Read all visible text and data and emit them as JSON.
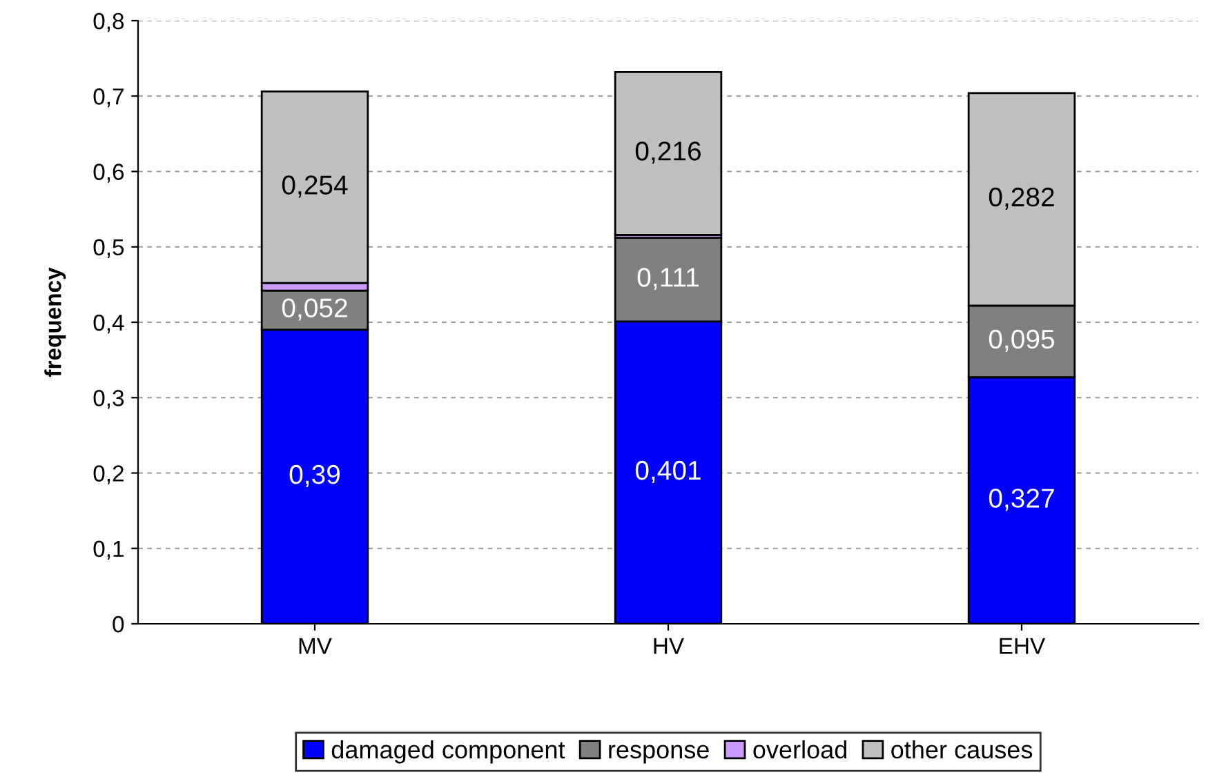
{
  "chart_data": {
    "type": "bar",
    "stacked": true,
    "ylabel": "frequency",
    "categories": [
      "MV",
      "HV",
      "EHV"
    ],
    "series": [
      {
        "name": "damaged component",
        "color": "#0000ff",
        "values": [
          0.39,
          0.401,
          0.327
        ],
        "value_labels": [
          "0,39",
          "0,401",
          "0,327"
        ]
      },
      {
        "name": "response",
        "color": "#808080",
        "values": [
          0.052,
          0.111,
          0.095
        ],
        "value_labels": [
          "0,052",
          "0,111",
          "0,095"
        ]
      },
      {
        "name": "overload",
        "color": "#cc99ff",
        "values": [
          0.01,
          0.004,
          null
        ],
        "value_labels": [
          null,
          null,
          null
        ]
      },
      {
        "name": "other causes",
        "color": "#c0c0c0",
        "values": [
          0.254,
          0.216,
          0.282
        ],
        "value_labels": [
          "0,254",
          "0,216",
          "0,282"
        ]
      }
    ],
    "ylim": [
      0,
      0.8
    ],
    "yticks": [
      {
        "value": 0,
        "label": "0"
      },
      {
        "value": 0.1,
        "label": "0,1"
      },
      {
        "value": 0.2,
        "label": "0,2"
      },
      {
        "value": 0.3,
        "label": "0,3"
      },
      {
        "value": 0.4,
        "label": "0,4"
      },
      {
        "value": 0.5,
        "label": "0,5"
      },
      {
        "value": 0.6,
        "label": "0,6"
      },
      {
        "value": 0.7,
        "label": "0,7"
      },
      {
        "value": 0.8,
        "label": "0,8"
      }
    ],
    "grid": "y",
    "legend": "bottom"
  }
}
